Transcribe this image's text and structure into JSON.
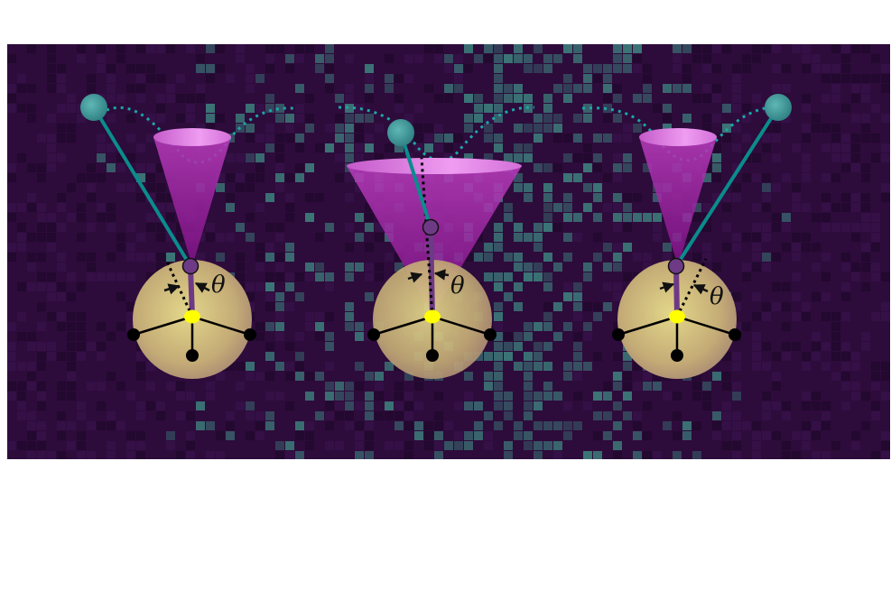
{
  "figure": {
    "background_color": "#2f0a3d",
    "tile_color": "#2f6e6a",
    "rod_color": "#008b8b",
    "cone_color": "#9b1fa0",
    "cone_rim_color": "#e07de6",
    "sphere_color": "#c9b47a",
    "center_atom_color": "#ffff00",
    "angle_label": "θ",
    "panels": [
      {
        "angle_label": "θ"
      },
      {
        "angle_label": "θ"
      },
      {
        "angle_label": "θ"
      }
    ]
  }
}
